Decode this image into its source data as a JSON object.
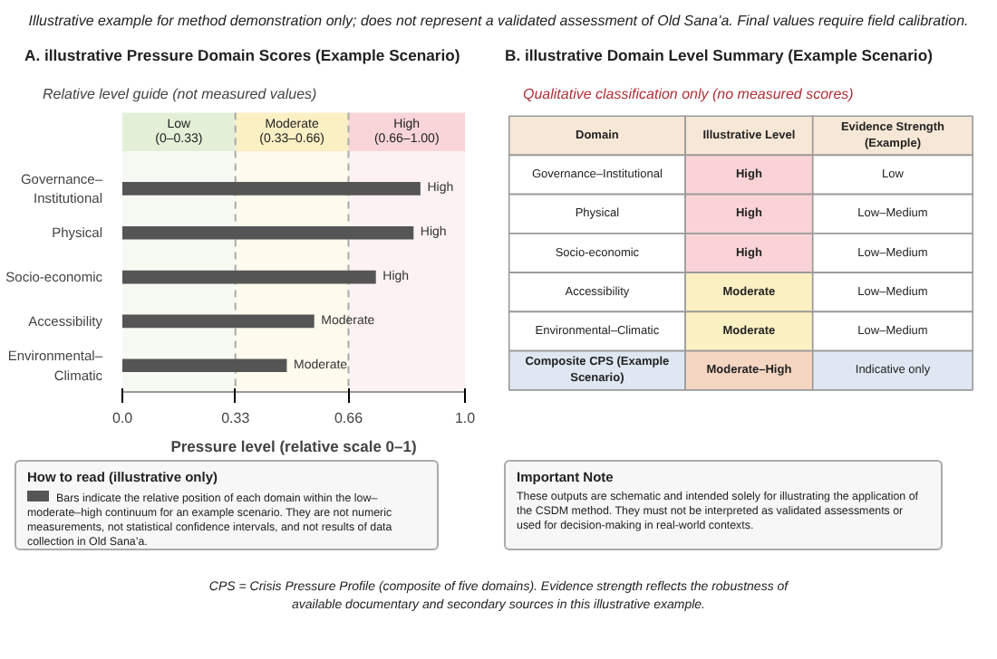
{
  "chart_data": [
    {
      "type": "bar",
      "orientation": "horizontal",
      "title": "A. illustrative Pressure Domain Scores (Example Scenario)",
      "subtitle": "Relative level guide (not measured values)",
      "xlabel": "Pressure level (relative scale 0–1)",
      "categories": [
        "Governance–Institutional",
        "Physical",
        "Socio-economic",
        "Accessibility",
        "Environmental–Climatic"
      ],
      "values": [
        0.87,
        0.85,
        0.74,
        0.56,
        0.48
      ],
      "color": "#555555",
      "value_labels": [
        "High",
        "High",
        "High",
        "Moderate",
        "Moderate"
      ],
      "xlim": [
        0,
        1
      ],
      "xticks": [
        {
          "value": 0,
          "label": "0.0"
        },
        0.33,
        0.66,
        {
          "value": 1,
          "label": "1.0"
        }
      ],
      "bands": [
        {
          "axis": "x",
          "from": 0,
          "to": 0.33,
          "label": "Low (0–0.33)",
          "color": "#e4efd8"
        },
        {
          "axis": "x",
          "from": 0.33,
          "to": 0.66,
          "label": "Moderate (0.33–0.66)",
          "color": "#fbefc4"
        },
        {
          "axis": "x",
          "from": 0.66,
          "to": 1,
          "label": "High (0.66–1.00)",
          "color": "#f9d5d7"
        }
      ],
      "ref_lines": [
        {
          "axis": "x",
          "value": 0.33,
          "line_style": "dashed",
          "color": "#aaaaaa"
        },
        {
          "axis": "x",
          "value": 0.66,
          "line_style": "dashed",
          "color": "#aaaaaa"
        }
      ],
      "grid": false,
      "annotations": [
        "Illustrative example for method demonstration only; does not represent a validated assessment of Old Sana’a. Final values require field calibration.",
        "How to read (illustrative only)",
        "Bars indicate the relative position of each domain within the low–moderate–high continuum for an example scenario. They are not numeric measurements, not statistical confidence intervals, and not results of data collection in Old Sana’a."
      ]
    },
    {
      "type": "other",
      "title": "B. illustrative Domain Level Summary (Example Scenario)",
      "subtitle": "Qualitative classification only (no measured scores)",
      "categories": [
        "Domain",
        "Illustrative Level",
        "Evidence Strength (Example)"
      ],
      "cell_labels": [
        [
          "Governance–Institutional",
          "High",
          "Low"
        ],
        [
          "Physical",
          "High",
          "Low–Medium"
        ],
        [
          "Socio-economic",
          "High",
          "Low–Medium"
        ],
        [
          "Accessibility",
          "Moderate",
          "Low–Medium"
        ],
        [
          "Environmental–Climatic",
          "Moderate",
          "Low–Medium"
        ],
        [
          "Composite CPS (Example Scenario)",
          "Moderate–High",
          "Indicative only"
        ]
      ],
      "colors": [
        [
          "#f7e7d6",
          "#f7e7d6",
          "#f7e7d6"
        ],
        [
          "#ffffff",
          "#f9d3d6",
          "#ffffff"
        ],
        [
          "#ffffff",
          "#f9d3d6",
          "#ffffff"
        ],
        [
          "#ffffff",
          "#f9d3d6",
          "#ffffff"
        ],
        [
          "#ffffff",
          "#fbf0c2",
          "#ffffff"
        ],
        [
          "#ffffff",
          "#fbf0c2",
          "#ffffff"
        ],
        [
          "#dfe7f2",
          "#f5d6c2",
          "#dfe7f2"
        ]
      ],
      "annotations": [
        "Important Note",
        "These outputs are schematic and intended solely for illustrating the application of the CSDM method. They must not be interpreted as validated assessments or used for decision-making in real-world contexts.",
        "CPS = Crisis Pressure Profile (composite of five domains). Evidence strength reflects the robustness of available documentary and secondary sources in this illustrative example."
      ]
    }
  ]
}
